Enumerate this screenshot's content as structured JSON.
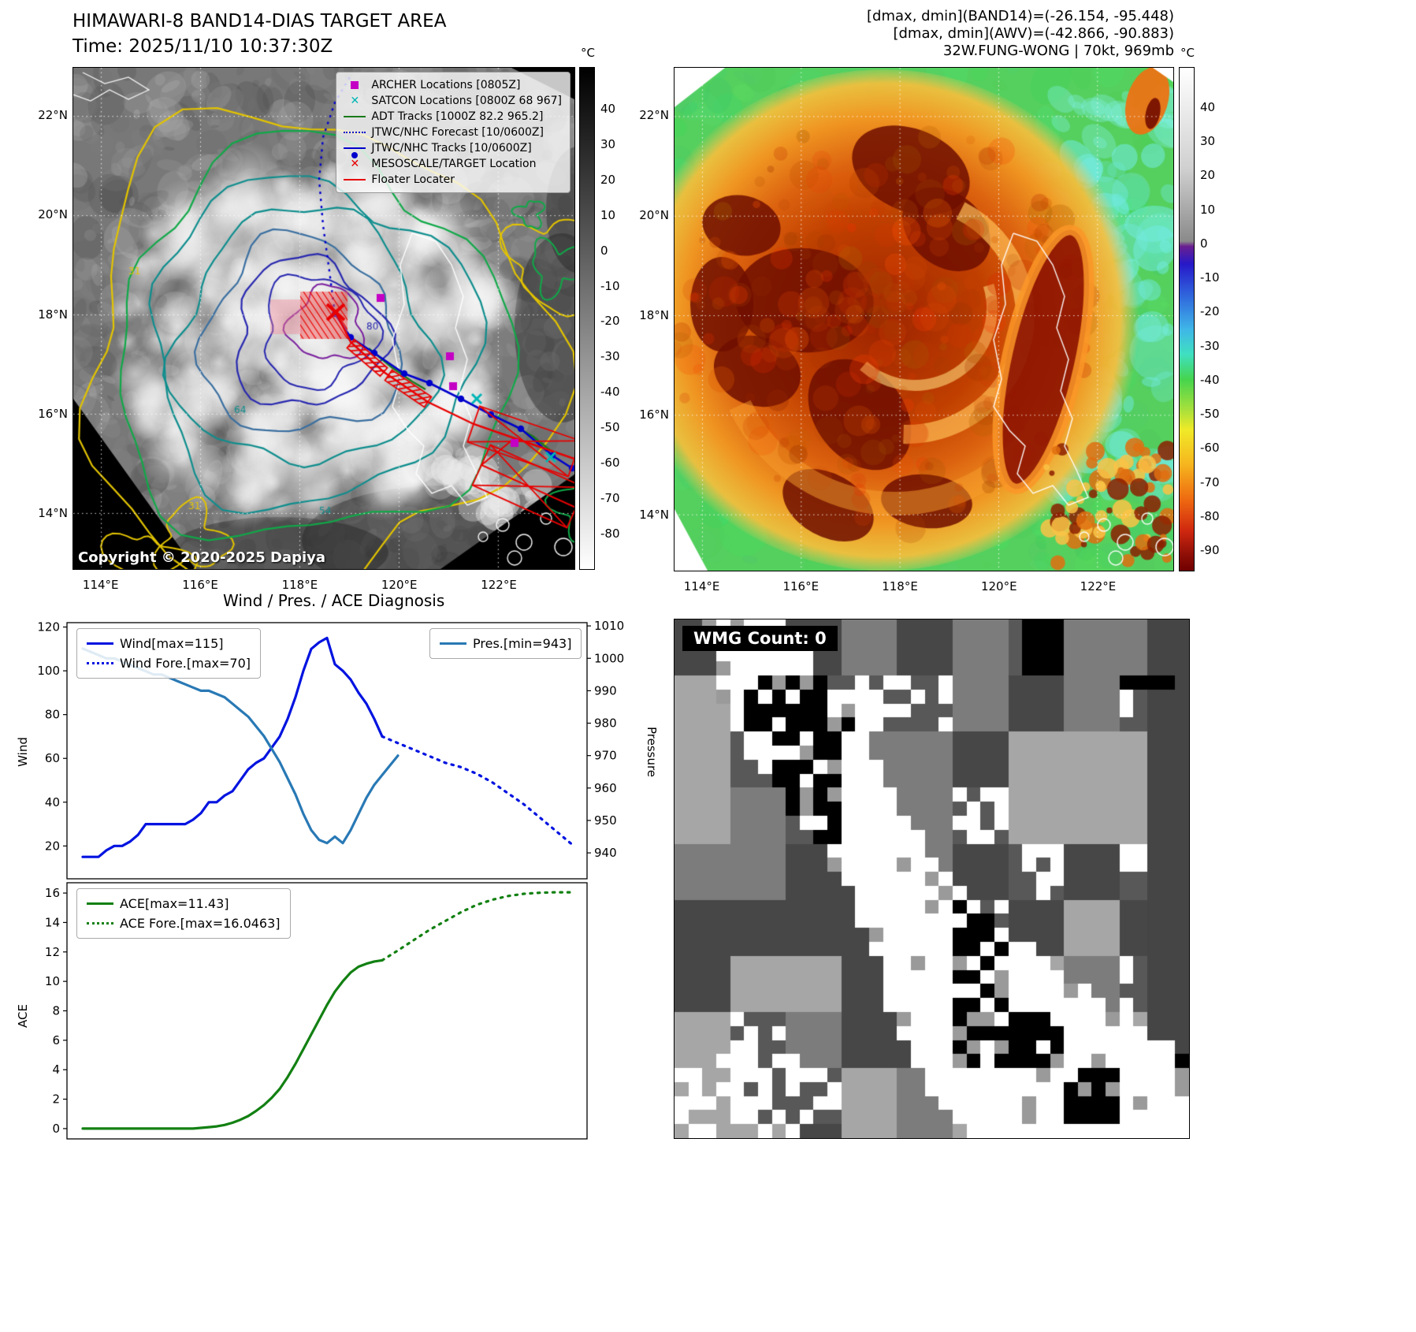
{
  "left_map": {
    "title": "HIMAWARI-8 BAND14-DIAS TARGET AREA",
    "subtitle": "Time: 2025/11/10 10:37:30Z",
    "copyright": "Copyright © 2020-2025 Dapiya",
    "legend": [
      {
        "label": "ARCHER Locations [0805Z]",
        "marker": "square",
        "color": "#c400c4"
      },
      {
        "label": "SATCON Locations [0800Z 68 967]",
        "marker": "cross",
        "color": "#00b5b5"
      },
      {
        "label": "ADT Tracks [1000Z 82.2 965.2]",
        "marker": "line",
        "color": "#1a7a1a"
      },
      {
        "label": "JTWC/NHC Forecast [10/0600Z]",
        "marker": "dotted-line",
        "color": "#0000cc"
      },
      {
        "label": "JTWC/NHC Tracks [10/0600Z]",
        "marker": "line-dot",
        "color": "#0000cc"
      },
      {
        "label": "MESOSCALE/TARGET Location",
        "marker": "cross",
        "color": "#e80000"
      },
      {
        "label": "Floater Locater",
        "marker": "line",
        "color": "#e80000"
      }
    ],
    "lat_ticks": [
      "22°N",
      "20°N",
      "18°N",
      "16°N",
      "14°N"
    ],
    "lon_ticks": [
      "114°E",
      "116°E",
      "118°E",
      "120°E",
      "122°E"
    ],
    "contour_labels": [
      "31",
      "54",
      "64",
      "80"
    ],
    "colorbar": {
      "unit": "°C",
      "ticks": [
        40,
        30,
        20,
        10,
        0,
        -10,
        -20,
        -30,
        -40,
        -50,
        -60,
        -70,
        -80
      ]
    }
  },
  "right_map": {
    "title_lines": [
      "[dmax, dmin](BAND14)=(-26.154, -95.448)",
      "[dmax, dmin](AWV)=(-42.866, -90.883)",
      "32W.FUNG-WONG | 70kt, 969mb"
    ],
    "lat_ticks": [
      "22°N",
      "20°N",
      "18°N",
      "16°N",
      "14°N"
    ],
    "lon_ticks": [
      "114°E",
      "116°E",
      "118°E",
      "120°E",
      "122°E"
    ],
    "colorbar": {
      "unit": "°C",
      "ticks": [
        40,
        30,
        20,
        10,
        0,
        -10,
        -20,
        -30,
        -40,
        -50,
        -60,
        -70,
        -80,
        -90
      ]
    }
  },
  "wmg": {
    "label": "WMG Count: 0"
  },
  "chart_data": [
    {
      "type": "line",
      "title": "Wind / Pres. / ACE Diagnosis",
      "ylabel": "Wind",
      "y2label": "Pressure",
      "xlim": [
        0,
        66
      ],
      "ylim": [
        5,
        122
      ],
      "y2lim": [
        932,
        1011
      ],
      "yticks": [
        20,
        40,
        60,
        80,
        100,
        120
      ],
      "y2ticks": [
        940,
        950,
        960,
        970,
        980,
        990,
        1000,
        1010
      ],
      "grid": false,
      "legend_position": "upper-left and upper-right",
      "series": [
        {
          "name": "Wind[max=115]",
          "color": "#0013e0",
          "style": "solid",
          "axis": "left",
          "x": [
            2,
            3,
            4,
            5,
            6,
            7,
            8,
            9,
            10,
            11,
            12,
            13,
            14,
            15,
            16,
            17,
            18,
            19,
            20,
            21,
            22,
            23,
            24,
            25,
            26,
            27,
            28,
            29,
            30,
            31,
            32,
            33,
            34,
            35,
            36,
            37,
            38,
            39,
            40
          ],
          "values": [
            15,
            15,
            15,
            18,
            20,
            20,
            22,
            25,
            30,
            30,
            30,
            30,
            30,
            30,
            32,
            35,
            40,
            40,
            43,
            45,
            50,
            55,
            58,
            60,
            65,
            70,
            78,
            88,
            100,
            110,
            113,
            115,
            103,
            100,
            96,
            90,
            85,
            78,
            70
          ]
        },
        {
          "name": "Wind Fore.[max=70]",
          "color": "#0013e0",
          "style": "dotted",
          "axis": "left",
          "x": [
            40,
            42,
            44,
            46,
            48,
            50,
            52,
            54,
            56,
            58,
            60,
            62,
            64
          ],
          "values": [
            70,
            67,
            64,
            61,
            58,
            56,
            53,
            49,
            44,
            39,
            33,
            27,
            21
          ]
        },
        {
          "name": "Pres.[min=943]",
          "color": "#2979b5",
          "style": "solid",
          "axis": "right",
          "x": [
            2,
            3,
            4,
            5,
            6,
            7,
            8,
            9,
            10,
            11,
            12,
            13,
            14,
            15,
            16,
            17,
            18,
            19,
            20,
            21,
            22,
            23,
            24,
            25,
            26,
            27,
            28,
            29,
            30,
            31,
            32,
            33,
            34,
            35,
            36,
            37,
            38,
            39,
            40,
            41,
            42
          ],
          "values": [
            1003,
            1002,
            1001,
            1000,
            1000,
            999,
            998,
            997,
            996,
            995,
            995,
            994,
            993,
            992,
            991,
            990,
            990,
            989,
            988,
            986,
            984,
            982,
            979,
            976,
            972,
            968,
            963,
            958,
            952,
            947,
            944,
            943,
            945,
            943,
            947,
            952,
            957,
            961,
            964,
            967,
            970
          ]
        }
      ]
    },
    {
      "type": "line",
      "ylabel": "ACE",
      "xlim": [
        0,
        66
      ],
      "ylim": [
        -0.7,
        16.7
      ],
      "yticks": [
        0,
        2,
        4,
        6,
        8,
        10,
        12,
        14,
        16
      ],
      "grid": false,
      "legend_position": "upper-left",
      "series": [
        {
          "name": "ACE[max=11.43]",
          "color": "#128012",
          "style": "solid",
          "axis": "left",
          "x": [
            2,
            3,
            4,
            5,
            6,
            7,
            8,
            9,
            10,
            11,
            12,
            13,
            14,
            15,
            16,
            17,
            18,
            19,
            20,
            21,
            22,
            23,
            24,
            25,
            26,
            27,
            28,
            29,
            30,
            31,
            32,
            33,
            34,
            35,
            36,
            37,
            38,
            39,
            40
          ],
          "values": [
            0,
            0,
            0,
            0,
            0,
            0,
            0,
            0,
            0,
            0,
            0,
            0,
            0,
            0,
            0,
            0.05,
            0.1,
            0.15,
            0.25,
            0.4,
            0.6,
            0.85,
            1.2,
            1.6,
            2.1,
            2.7,
            3.5,
            4.4,
            5.4,
            6.4,
            7.4,
            8.4,
            9.3,
            10,
            10.6,
            11,
            11.2,
            11.35,
            11.43
          ]
        },
        {
          "name": "ACE Fore.[max=16.0463]",
          "color": "#128012",
          "style": "dotted",
          "axis": "left",
          "x": [
            40,
            42,
            44,
            46,
            48,
            50,
            52,
            54,
            56,
            58,
            60,
            62,
            64
          ],
          "values": [
            11.43,
            12.1,
            12.8,
            13.5,
            14.1,
            14.7,
            15.2,
            15.55,
            15.8,
            15.95,
            16.02,
            16.05,
            16.05
          ]
        }
      ]
    }
  ]
}
